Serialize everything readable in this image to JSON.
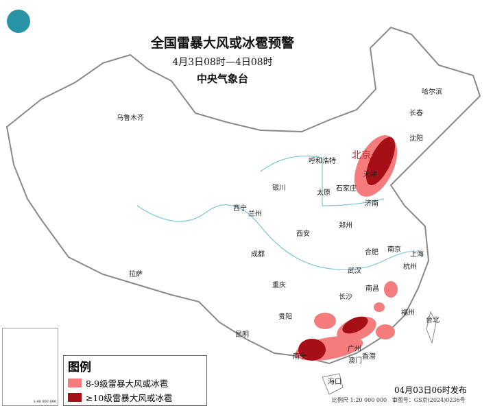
{
  "title": "全国雷暴大风或冰雹预警",
  "period": "4月3日08时—4日08时",
  "issuer": "中央气象台",
  "cities": [
    "乌鲁木齐",
    "哈尔滨",
    "长春",
    "沈阳",
    "北京",
    "天津",
    "呼和浩特",
    "石家庄",
    "太原",
    "济南",
    "银川",
    "西宁",
    "兰州",
    "西安",
    "郑州",
    "合肥",
    "南京",
    "上海",
    "杭州",
    "武汉",
    "成都",
    "重庆",
    "拉萨",
    "长沙",
    "南昌",
    "福州",
    "台北",
    "贵阳",
    "昆明",
    "南宁",
    "广州",
    "香港",
    "澳门",
    "海口"
  ],
  "legend": {
    "title": "图例",
    "items": [
      {
        "label": "8-9级雷暴大风或冰雹",
        "color": "#f47c7c"
      },
      {
        "label": "≥10级雷暴大风或冰雹",
        "color": "#a50f15"
      }
    ]
  },
  "published": "04月03日06时发布",
  "scale": "比例尺 1:20 000 000",
  "approval": "审图号：GS京(2024)0236号",
  "inset_scale": "1:40 000 000",
  "colors": {
    "border": "#888888",
    "river": "#7fc6d6",
    "light_warning": "#f47c7c",
    "severe_warning": "#a50f15"
  }
}
